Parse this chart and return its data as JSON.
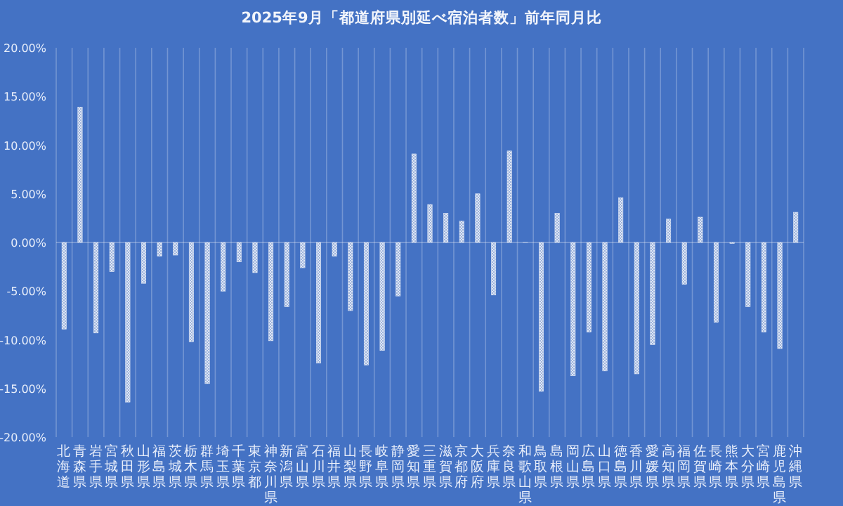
{
  "chart_data": {
    "type": "bar",
    "title": "2025年9月「都道府県別延べ宿泊者数」前年同月比",
    "categories": [
      "北海道",
      "青森県",
      "岩手県",
      "宮城県",
      "秋田県",
      "山形県",
      "福島県",
      "茨城県",
      "栃木県",
      "群馬県",
      "埼玉県",
      "千葉県",
      "東京都",
      "神奈川県",
      "新潟県",
      "富山県",
      "石川県",
      "福井県",
      "山梨県",
      "長野県",
      "岐阜県",
      "静岡県",
      "愛知県",
      "三重県",
      "滋賀県",
      "京都府",
      "大阪府",
      "兵庫県",
      "奈良県",
      "和歌山県",
      "鳥取県",
      "島根県",
      "岡山県",
      "広島県",
      "山口県",
      "徳島県",
      "香川県",
      "愛媛県",
      "高知県",
      "福岡県",
      "佐賀県",
      "長崎県",
      "熊本県",
      "大分県",
      "宮崎県",
      "鹿児島県",
      "沖縄県"
    ],
    "values": [
      -8.9,
      13.9,
      -9.3,
      -3.0,
      -16.4,
      -4.2,
      -1.4,
      -1.3,
      -10.2,
      -14.5,
      -5.0,
      -2.0,
      -3.1,
      -10.1,
      -6.6,
      -2.6,
      -12.4,
      -1.4,
      -7.0,
      -12.6,
      -11.1,
      -5.5,
      9.1,
      3.9,
      3.0,
      2.2,
      5.0,
      -5.4,
      9.4,
      0,
      -15.3,
      3.0,
      -13.7,
      -9.2,
      -13.2,
      4.6,
      -13.5,
      -10.5,
      2.4,
      -4.3,
      2.6,
      -8.2,
      -0.1,
      -6.6,
      -9.2,
      -10.9,
      3.1
    ],
    "color": "#dfe7f5",
    "ylim": [
      -20,
      20
    ],
    "yticks": [
      {
        "value": -20,
        "label": "-20.00%"
      },
      {
        "value": -15,
        "label": "-15.00%"
      },
      {
        "value": -10,
        "label": "-10.00%"
      },
      {
        "value": -5,
        "label": "-5.00%"
      },
      {
        "value": 0,
        "label": "0.00%"
      },
      {
        "value": 5,
        "label": "5.00%"
      },
      {
        "value": 10,
        "label": "10.00%"
      },
      {
        "value": 15,
        "label": "15.00%"
      },
      {
        "value": 20,
        "label": "20.00%"
      }
    ],
    "grid": "x"
  }
}
